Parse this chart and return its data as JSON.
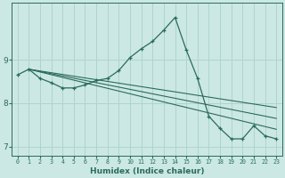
{
  "xlabel": "Humidex (Indice chaleur)",
  "ylabel": "",
  "bg_color": "#cce8e4",
  "line_color": "#2a6b5e",
  "grid_color": "#aed4ce",
  "x_data": [
    0,
    1,
    2,
    3,
    4,
    5,
    6,
    7,
    8,
    9,
    10,
    11,
    12,
    13,
    14,
    15,
    16,
    17,
    18,
    19,
    20,
    21,
    22,
    23
  ],
  "y_main": [
    8.65,
    8.78,
    8.57,
    8.47,
    8.35,
    8.35,
    8.42,
    8.52,
    8.57,
    8.75,
    9.05,
    9.25,
    9.42,
    9.68,
    9.97,
    9.22,
    8.57,
    7.7,
    7.42,
    7.18,
    7.18,
    7.48,
    7.25,
    7.18
  ],
  "y_trend1_x": [
    1,
    23
  ],
  "y_trend1_y": [
    8.78,
    7.9
  ],
  "y_trend2_x": [
    1,
    23
  ],
  "y_trend2_y": [
    8.78,
    7.65
  ],
  "y_trend3_x": [
    1,
    23
  ],
  "y_trend3_y": [
    8.78,
    7.4
  ],
  "ylim": [
    6.8,
    10.3
  ],
  "xlim": [
    -0.5,
    23.5
  ],
  "yticks": [
    7,
    8,
    9
  ],
  "xticks": [
    0,
    1,
    2,
    3,
    4,
    5,
    6,
    7,
    8,
    9,
    10,
    11,
    12,
    13,
    14,
    15,
    16,
    17,
    18,
    19,
    20,
    21,
    22,
    23
  ]
}
